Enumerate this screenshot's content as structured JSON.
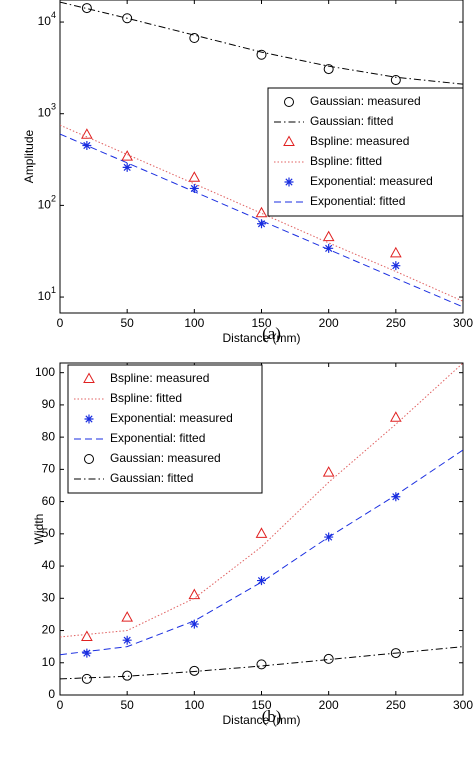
{
  "chart_data": [
    {
      "type": "line",
      "ylabel": "Amplitude",
      "xlabel": "Distance (mm)",
      "caption": "(a)",
      "log_y": true,
      "legend": "upper right",
      "xlim": [
        0,
        300
      ],
      "xticks": [
        0,
        50,
        100,
        150,
        200,
        250,
        300
      ],
      "ylim": [
        6.7,
        17400
      ],
      "yticks": [
        {
          "value": 10,
          "label": "10^1"
        },
        {
          "value": 100,
          "label": "10^2"
        },
        {
          "value": 1000,
          "label": "10^3"
        },
        {
          "value": 10000,
          "label": "10^4"
        }
      ],
      "series": [
        {
          "name": "Gaussian: measured",
          "color": "#000000",
          "style": "circle",
          "x": [
            20,
            50,
            100,
            150,
            200,
            250
          ],
          "values": [
            14200,
            11000,
            6700,
            4400,
            3070,
            2330
          ]
        },
        {
          "name": "Gaussian: fitted",
          "color": "#000000",
          "style": "dashdot",
          "x": [
            0,
            50,
            100,
            150,
            200,
            250,
            300
          ],
          "values": [
            16500,
            11000,
            7200,
            4700,
            3300,
            2500,
            2100
          ]
        },
        {
          "name": "Bspline: measured",
          "color": "#e02020",
          "style": "triangle",
          "x": [
            20,
            50,
            100,
            150,
            200,
            250
          ],
          "values": [
            590,
            340,
            200,
            82,
            45,
            30
          ]
        },
        {
          "name": "Bspline: fitted",
          "color": "#e06060",
          "style": "dotted",
          "x": [
            0,
            50,
            100,
            150,
            200,
            250,
            300
          ],
          "values": [
            750,
            359,
            172,
            82,
            39,
            19,
            9
          ]
        },
        {
          "name": "Exponential: measured",
          "color": "#1a2ee0",
          "style": "star",
          "x": [
            20,
            50,
            100,
            150,
            200,
            250
          ],
          "values": [
            450,
            260,
            153,
            63,
            34,
            22
          ]
        },
        {
          "name": "Exponential: fitted",
          "color": "#1a2ee0",
          "style": "dashed",
          "x": [
            0,
            50,
            100,
            150,
            200,
            250,
            300
          ],
          "values": [
            600,
            291,
            141,
            68,
            33,
            16,
            7.8
          ]
        }
      ]
    },
    {
      "type": "line",
      "ylabel": "Width",
      "xlabel": "Distance (mm)",
      "caption": "(b)",
      "log_y": false,
      "legend": "upper left",
      "xlim": [
        0,
        300
      ],
      "xticks": [
        0,
        50,
        100,
        150,
        200,
        250,
        300
      ],
      "ylim": [
        0,
        103
      ],
      "yticks": [
        0,
        10,
        20,
        30,
        40,
        50,
        60,
        70,
        80,
        90,
        100
      ],
      "series": [
        {
          "name": "Bspline: measured",
          "color": "#e02020",
          "style": "triangle",
          "x": [
            20,
            50,
            100,
            150,
            200,
            250
          ],
          "values": [
            18,
            24,
            31,
            50,
            69,
            86
          ]
        },
        {
          "name": "Bspline: fitted",
          "color": "#e06060",
          "style": "dotted",
          "x": [
            0,
            50,
            100,
            150,
            200,
            250,
            300
          ],
          "values": [
            18,
            20,
            30,
            46,
            66,
            84,
            103
          ]
        },
        {
          "name": "Exponential: measured",
          "color": "#1a2ee0",
          "style": "star",
          "x": [
            20,
            50,
            100,
            150,
            200,
            250
          ],
          "values": [
            13,
            17,
            22,
            35.5,
            49,
            61.5
          ]
        },
        {
          "name": "Exponential: fitted",
          "color": "#1a2ee0",
          "style": "dashed",
          "x": [
            0,
            50,
            100,
            150,
            200,
            250,
            300
          ],
          "values": [
            12.5,
            15,
            23,
            35,
            49,
            62,
            76
          ]
        },
        {
          "name": "Gaussian: measured",
          "color": "#000000",
          "style": "circle",
          "x": [
            20,
            50,
            100,
            150,
            200,
            250
          ],
          "values": [
            5,
            6,
            7.5,
            9.5,
            11.2,
            13
          ]
        },
        {
          "name": "Gaussian: fitted",
          "color": "#000000",
          "style": "dashdot",
          "x": [
            0,
            50,
            100,
            150,
            200,
            250,
            300
          ],
          "values": [
            5,
            5.8,
            7.3,
            9,
            11,
            13,
            15
          ]
        }
      ]
    }
  ]
}
